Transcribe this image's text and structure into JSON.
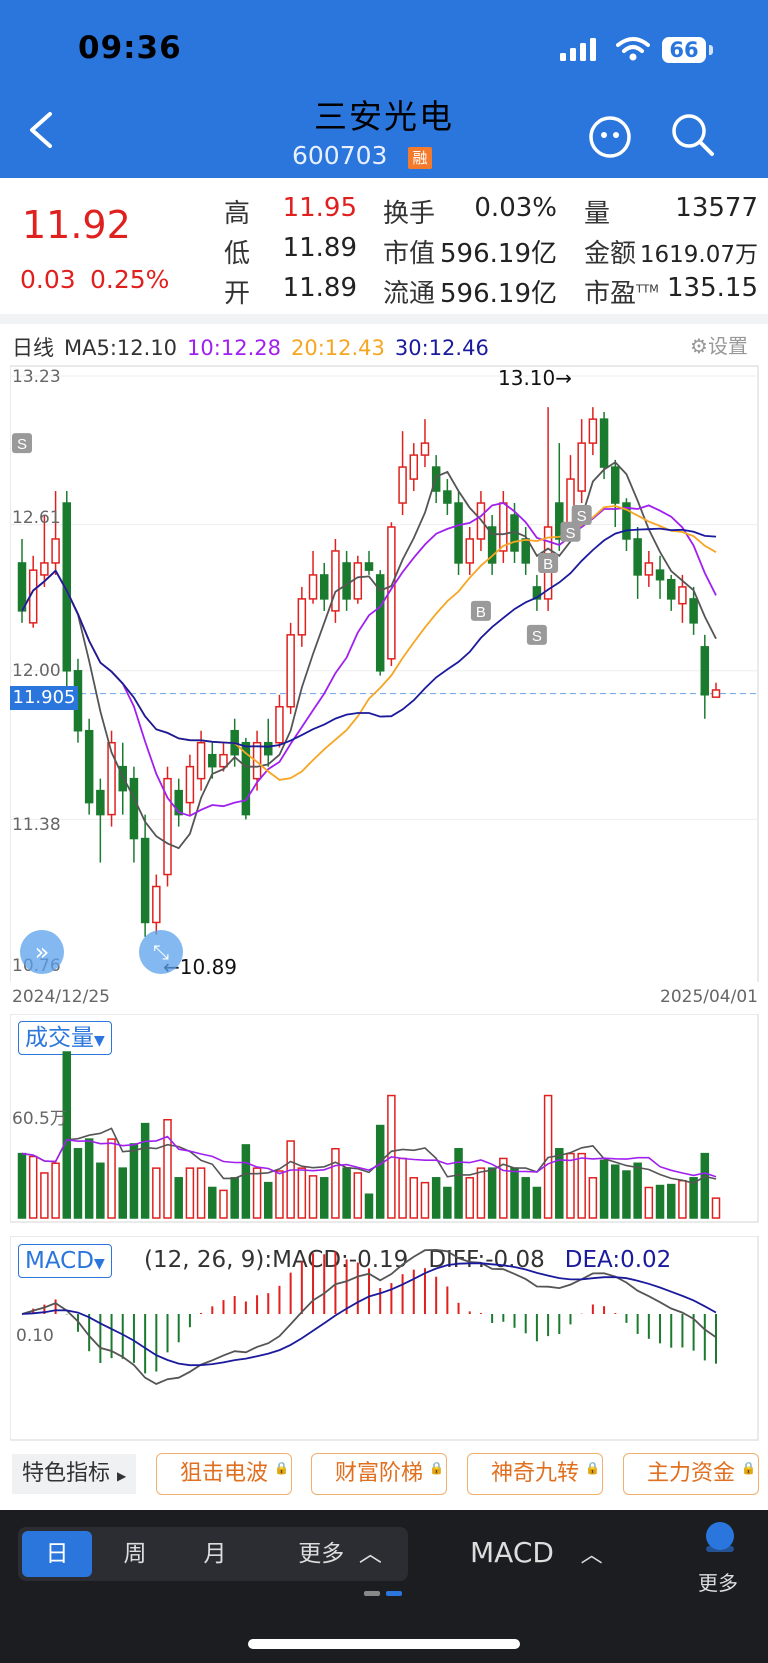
{
  "status": {
    "time": "09:36",
    "battery": "66"
  },
  "header": {
    "title": "三安光电",
    "code": "600703",
    "badge": "融"
  },
  "quote": {
    "price": "11.92",
    "change": "0.03",
    "change_pct": "0.25%",
    "stats": [
      {
        "label": "高",
        "value": "11.95",
        "red": true
      },
      {
        "label": "低",
        "value": "11.89",
        "red": false
      },
      {
        "label": "开",
        "value": "11.89",
        "red": false
      },
      {
        "label": "换手",
        "value": "0.03%"
      },
      {
        "label": "市值",
        "value": "596.19亿"
      },
      {
        "label": "流通",
        "value": "596.19亿"
      },
      {
        "label": "量",
        "value": "13577"
      },
      {
        "label": "金额",
        "value": "1619.07万"
      },
      {
        "label": "市盈",
        "sup": "TTM",
        "value": "135.15"
      }
    ]
  },
  "kline": {
    "period_label": "日线",
    "ma5": "MA5:12.10",
    "ma10": "10:12.28",
    "ma20": "20:12.43",
    "ma30": "30:12.46",
    "setting_label": "设置",
    "y_labels": [
      "13.23",
      "12.61",
      "12.00",
      "11.38",
      "10.76"
    ],
    "current_price_tag": "11.905",
    "high_marker": "13.10→",
    "low_marker": "←10.89",
    "start_date": "2024/12/25",
    "end_date": "2025/04/01",
    "signals": [
      "S",
      "S",
      "B",
      "B",
      "S",
      "S"
    ]
  },
  "volume": {
    "button_label": "成交量",
    "y_label": "60.5万"
  },
  "macd": {
    "button_label": "MACD",
    "params": "(12, 26, 9):MACD:-0.19",
    "diff": "DIFF:-0.08",
    "dea": "DEA:0.02",
    "y_label": "0.10"
  },
  "features": {
    "label": "特色指标",
    "buttons": [
      "狙击电波",
      "财富阶梯",
      "神奇九转",
      "主力资金"
    ]
  },
  "nav": {
    "tabs": [
      "日",
      "周",
      "月",
      "更多"
    ],
    "indicator": "MACD",
    "more": "更多"
  },
  "colors": {
    "up": "#e0201e",
    "down": "#1a7a2e",
    "ma5": "#555555",
    "ma10": "#a020f0",
    "ma20": "#f5a623",
    "ma30": "#1a1a9c",
    "brand": "#2a76dd"
  },
  "chart_data": {
    "type": "candlestick",
    "x_range": [
      "2024/12/25",
      "2025/04/01"
    ],
    "ylim": [
      10.76,
      13.23
    ],
    "candles_ohlc": [
      [
        12.45,
        12.25,
        12.55,
        12.2
      ],
      [
        12.2,
        12.42,
        12.48,
        12.18
      ],
      [
        12.4,
        12.45,
        12.65,
        12.35
      ],
      [
        12.45,
        12.55,
        12.75,
        12.4
      ],
      [
        12.7,
        12.0,
        12.75,
        11.85
      ],
      [
        12.0,
        11.75,
        12.05,
        11.7
      ],
      [
        11.75,
        11.45,
        11.8,
        11.4
      ],
      [
        11.5,
        11.4,
        11.55,
        11.2
      ],
      [
        11.4,
        11.7,
        11.75,
        11.35
      ],
      [
        11.6,
        11.5,
        11.7,
        11.4
      ],
      [
        11.55,
        11.3,
        11.6,
        11.2
      ],
      [
        11.3,
        10.95,
        11.4,
        10.89
      ],
      [
        10.95,
        11.1,
        11.15,
        10.9
      ],
      [
        11.15,
        11.55,
        11.6,
        11.1
      ],
      [
        11.5,
        11.4,
        11.55,
        11.35
      ],
      [
        11.45,
        11.6,
        11.65,
        11.4
      ],
      [
        11.55,
        11.7,
        11.75,
        11.5
      ],
      [
        11.65,
        11.6,
        11.7,
        11.55
      ],
      [
        11.6,
        11.65,
        11.7,
        11.58
      ],
      [
        11.75,
        11.65,
        11.8,
        11.6
      ],
      [
        11.7,
        11.4,
        11.72,
        11.38
      ],
      [
        11.55,
        11.7,
        11.75,
        11.5
      ],
      [
        11.7,
        11.65,
        11.8,
        11.6
      ],
      [
        11.7,
        11.85,
        11.9,
        11.68
      ],
      [
        11.85,
        12.15,
        12.2,
        11.82
      ],
      [
        12.15,
        12.3,
        12.35,
        12.1
      ],
      [
        12.3,
        12.4,
        12.5,
        12.28
      ],
      [
        12.4,
        12.3,
        12.45,
        12.25
      ],
      [
        12.25,
        12.5,
        12.55,
        12.2
      ],
      [
        12.45,
        12.3,
        12.5,
        12.25
      ],
      [
        12.3,
        12.45,
        12.48,
        12.28
      ],
      [
        12.45,
        12.42,
        12.5,
        12.4
      ],
      [
        12.4,
        12.0,
        12.42,
        11.98
      ],
      [
        12.05,
        12.6,
        12.62,
        12.02
      ],
      [
        12.7,
        12.85,
        13.0,
        12.65
      ],
      [
        12.8,
        12.9,
        12.95,
        12.75
      ],
      [
        12.9,
        12.95,
        13.05,
        12.85
      ],
      [
        12.85,
        12.75,
        12.9,
        12.7
      ],
      [
        12.75,
        12.7,
        12.8,
        12.65
      ],
      [
        12.7,
        12.45,
        12.75,
        12.4
      ],
      [
        12.45,
        12.55,
        12.6,
        12.4
      ],
      [
        12.55,
        12.7,
        12.75,
        12.5
      ],
      [
        12.6,
        12.45,
        12.65,
        12.4
      ],
      [
        12.5,
        12.7,
        12.75,
        12.45
      ],
      [
        12.65,
        12.5,
        12.7,
        12.45
      ],
      [
        12.55,
        12.45,
        12.6,
        12.4
      ],
      [
        12.35,
        12.3,
        12.4,
        12.25
      ],
      [
        12.3,
        12.6,
        13.1,
        12.25
      ],
      [
        12.7,
        12.55,
        12.95,
        12.5
      ],
      [
        12.6,
        12.8,
        12.9,
        12.55
      ],
      [
        12.75,
        12.95,
        13.05,
        12.7
      ],
      [
        12.95,
        13.05,
        13.1,
        12.9
      ],
      [
        13.05,
        12.85,
        13.08,
        12.8
      ],
      [
        12.85,
        12.7,
        12.88,
        12.6
      ],
      [
        12.7,
        12.55,
        12.72,
        12.5
      ],
      [
        12.55,
        12.4,
        12.6,
        12.3
      ],
      [
        12.4,
        12.45,
        12.5,
        12.35
      ],
      [
        12.42,
        12.38,
        12.48,
        12.3
      ],
      [
        12.38,
        12.3,
        12.4,
        12.25
      ],
      [
        12.28,
        12.35,
        12.4,
        12.2
      ],
      [
        12.3,
        12.2,
        12.35,
        12.15
      ],
      [
        12.1,
        11.9,
        12.15,
        11.8
      ],
      [
        11.89,
        11.92,
        11.95,
        11.89
      ]
    ],
    "volume_max_label": "60.5万",
    "series": [
      {
        "name": "MA5",
        "value": 12.1
      },
      {
        "name": "MA10",
        "value": 12.28
      },
      {
        "name": "MA20",
        "value": 12.43
      },
      {
        "name": "MA30",
        "value": 12.46
      }
    ]
  }
}
